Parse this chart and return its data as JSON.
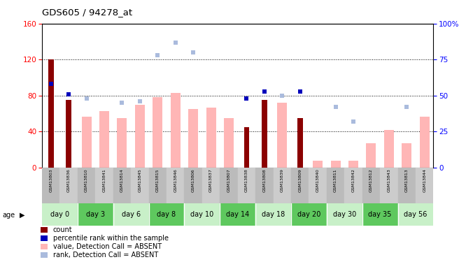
{
  "title": "GDS605 / 94278_at",
  "samples": [
    "GSM13803",
    "GSM13836",
    "GSM13810",
    "GSM13841",
    "GSM13814",
    "GSM13845",
    "GSM13815",
    "GSM13846",
    "GSM13806",
    "GSM13837",
    "GSM13807",
    "GSM13838",
    "GSM13808",
    "GSM13839",
    "GSM13809",
    "GSM13840",
    "GSM13811",
    "GSM13842",
    "GSM13812",
    "GSM13843",
    "GSM13813",
    "GSM13844"
  ],
  "day_spans": [
    {
      "day": "day 0",
      "start": 0,
      "end": 2
    },
    {
      "day": "day 3",
      "start": 2,
      "end": 4
    },
    {
      "day": "day 6",
      "start": 4,
      "end": 6
    },
    {
      "day": "day 8",
      "start": 6,
      "end": 8
    },
    {
      "day": "day 10",
      "start": 8,
      "end": 10
    },
    {
      "day": "day 14",
      "start": 10,
      "end": 12
    },
    {
      "day": "day 18",
      "start": 12,
      "end": 14
    },
    {
      "day": "day 20",
      "start": 14,
      "end": 16
    },
    {
      "day": "day 30",
      "start": 16,
      "end": 18
    },
    {
      "day": "day 35",
      "start": 18,
      "end": 20
    },
    {
      "day": "day 56",
      "start": 20,
      "end": 22
    }
  ],
  "count_vals": [
    120,
    75,
    null,
    null,
    null,
    null,
    null,
    null,
    null,
    null,
    null,
    45,
    75,
    null,
    55,
    null,
    null,
    null,
    null,
    null,
    null,
    null
  ],
  "perc_vals": [
    58,
    51,
    null,
    null,
    null,
    null,
    null,
    null,
    null,
    null,
    null,
    48,
    53,
    null,
    53,
    null,
    null,
    null,
    null,
    null,
    null,
    null
  ],
  "value_absent": [
    null,
    null,
    57,
    63,
    55,
    70,
    78,
    83,
    65,
    67,
    55,
    null,
    null,
    72,
    null,
    8,
    8,
    8,
    27,
    42,
    27,
    57
  ],
  "rank_absent": [
    null,
    null,
    48,
    null,
    45,
    46,
    78,
    87,
    80,
    null,
    null,
    null,
    null,
    50,
    null,
    null,
    42,
    32,
    null,
    null,
    42,
    null
  ],
  "ylim_left": [
    0,
    160
  ],
  "ylim_right": [
    0,
    100
  ],
  "yticks_left": [
    0,
    40,
    80,
    120,
    160
  ],
  "ytick_right_vals": [
    0,
    25,
    50,
    75,
    100
  ],
  "ytick_right_labels": [
    "0",
    "25",
    "50",
    "75",
    "100%"
  ],
  "color_count": "#8B0000",
  "color_percentile": "#0000BB",
  "color_value_absent": "#FFB6B6",
  "color_rank_absent": "#AABBDD",
  "legend_labels": [
    "count",
    "percentile rank within the sample",
    "value, Detection Call = ABSENT",
    "rank, Detection Call = ABSENT"
  ]
}
